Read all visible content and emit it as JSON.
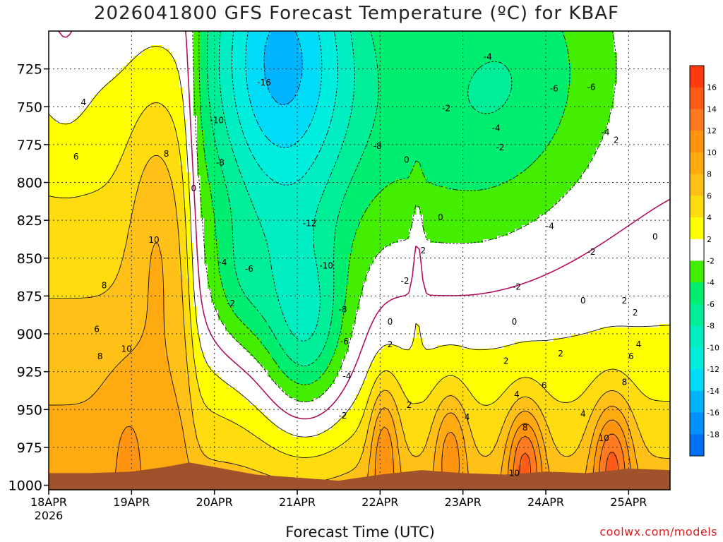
{
  "title": "2026041800 GFS Forecast Temperature (ºC) for KBAF",
  "credit": "coolwx.com/models",
  "chart_data": {
    "type": "heatmap",
    "title": "2026041800 GFS Forecast Temperature (ºC) for KBAF",
    "xlabel": "Forecast Time (UTC)",
    "ylabel": "",
    "x_ticks": [
      "18APR\n2026",
      "19APR",
      "20APR",
      "21APR",
      "22APR",
      "23APR",
      "24APR",
      "25APR"
    ],
    "x_day_range": [
      0,
      7.5
    ],
    "y_ticks": [
      725,
      750,
      775,
      800,
      825,
      850,
      875,
      900,
      925,
      950,
      975,
      1000
    ],
    "y_range": [
      1003,
      700
    ],
    "y_reversed": true,
    "grid": true,
    "legend": "right colorbar",
    "colorbar": {
      "labels": [
        16,
        14,
        12,
        10,
        8,
        6,
        4,
        2,
        -2,
        -4,
        -6,
        -8,
        -10,
        -12,
        -14,
        -16,
        -18
      ],
      "bins": [
        {
          "lo": 16,
          "hi": 18,
          "color": "#ff3a10"
        },
        {
          "lo": 14,
          "hi": 16,
          "color": "#ff5a18"
        },
        {
          "lo": 12,
          "hi": 14,
          "color": "#ff7a20"
        },
        {
          "lo": 10,
          "hi": 12,
          "color": "#ff9410"
        },
        {
          "lo": 8,
          "hi": 10,
          "color": "#ffaa10"
        },
        {
          "lo": 6,
          "hi": 8,
          "color": "#ffc018"
        },
        {
          "lo": 4,
          "hi": 6,
          "color": "#ffdc10"
        },
        {
          "lo": 2,
          "hi": 4,
          "color": "#ffff00"
        },
        {
          "lo": -2,
          "hi": 2,
          "color": "#ffffff"
        },
        {
          "lo": -4,
          "hi": -2,
          "color": "#44ee00"
        },
        {
          "lo": -6,
          "hi": -4,
          "color": "#00ee70"
        },
        {
          "lo": -8,
          "hi": -6,
          "color": "#00ee98"
        },
        {
          "lo": -10,
          "hi": -8,
          "color": "#00eec2"
        },
        {
          "lo": -12,
          "hi": -10,
          "color": "#00eedd"
        },
        {
          "lo": -14,
          "hi": -12,
          "color": "#00dcf8"
        },
        {
          "lo": -16,
          "hi": -14,
          "color": "#00b4ff"
        },
        {
          "lo": -18,
          "hi": -16,
          "color": "#0090ff"
        },
        {
          "lo": -20,
          "hi": -18,
          "color": "#0070f4"
        }
      ]
    },
    "zero_contour_color": "#b01060",
    "terrain_color": "#a0522d",
    "surface_pressure": [
      {
        "day": 0.0,
        "p": 992
      },
      {
        "day": 0.5,
        "p": 992
      },
      {
        "day": 1.0,
        "p": 991
      },
      {
        "day": 1.4,
        "p": 988
      },
      {
        "day": 1.7,
        "p": 985
      },
      {
        "day": 2.0,
        "p": 988
      },
      {
        "day": 2.5,
        "p": 993
      },
      {
        "day": 3.0,
        "p": 995
      },
      {
        "day": 3.5,
        "p": 997
      },
      {
        "day": 4.0,
        "p": 993
      },
      {
        "day": 4.5,
        "p": 990
      },
      {
        "day": 5.0,
        "p": 992
      },
      {
        "day": 5.5,
        "p": 993
      },
      {
        "day": 6.0,
        "p": 991
      },
      {
        "day": 6.5,
        "p": 992
      },
      {
        "day": 7.0,
        "p": 989
      },
      {
        "day": 7.5,
        "p": 990
      }
    ],
    "contour_labels": [
      {
        "day": 0.42,
        "p": 747,
        "t": "4"
      },
      {
        "day": 0.33,
        "p": 783,
        "t": "6"
      },
      {
        "day": 1.42,
        "p": 781,
        "t": "8"
      },
      {
        "day": 1.27,
        "p": 838,
        "t": "10"
      },
      {
        "day": 0.67,
        "p": 868,
        "t": "8"
      },
      {
        "day": 0.58,
        "p": 897,
        "t": "6"
      },
      {
        "day": 0.62,
        "p": 915,
        "t": "8"
      },
      {
        "day": 0.94,
        "p": 910,
        "t": "10"
      },
      {
        "day": 1.75,
        "p": 804,
        "t": "0"
      },
      {
        "day": 2.6,
        "p": 734,
        "t": "-16"
      },
      {
        "day": 2.03,
        "p": 759,
        "t": "-10"
      },
      {
        "day": 2.07,
        "p": 787,
        "t": "-8"
      },
      {
        "day": 3.15,
        "p": 827,
        "t": "-12"
      },
      {
        "day": 2.1,
        "p": 853,
        "t": "-4"
      },
      {
        "day": 2.42,
        "p": 857,
        "t": "-6"
      },
      {
        "day": 2.2,
        "p": 880,
        "t": "-2"
      },
      {
        "day": 3.35,
        "p": 855,
        "t": "-10"
      },
      {
        "day": 3.55,
        "p": 884,
        "t": "-8"
      },
      {
        "day": 3.57,
        "p": 905,
        "t": "-6"
      },
      {
        "day": 3.6,
        "p": 928,
        "t": "-4"
      },
      {
        "day": 3.55,
        "p": 954,
        "t": "-2"
      },
      {
        "day": 3.97,
        "p": 776,
        "t": "-8"
      },
      {
        "day": 4.3,
        "p": 865,
        "t": "-2"
      },
      {
        "day": 4.12,
        "p": 892,
        "t": "0"
      },
      {
        "day": 4.12,
        "p": 907,
        "t": "2"
      },
      {
        "day": 4.35,
        "p": 947,
        "t": "2"
      },
      {
        "day": 4.52,
        "p": 845,
        "t": "2"
      },
      {
        "day": 4.32,
        "p": 785,
        "t": "0"
      },
      {
        "day": 4.73,
        "p": 823,
        "t": "0"
      },
      {
        "day": 4.8,
        "p": 751,
        "t": "-2"
      },
      {
        "day": 5.3,
        "p": 717,
        "t": "-4"
      },
      {
        "day": 5.45,
        "p": 777,
        "t": "-2"
      },
      {
        "day": 5.4,
        "p": 764,
        "t": "-4"
      },
      {
        "day": 6.1,
        "p": 738,
        "t": "-6"
      },
      {
        "day": 6.55,
        "p": 737,
        "t": "-6"
      },
      {
        "day": 6.05,
        "p": 829,
        "t": "-4"
      },
      {
        "day": 6.72,
        "p": 767,
        "t": "-4"
      },
      {
        "day": 6.85,
        "p": 772,
        "t": "2"
      },
      {
        "day": 6.55,
        "p": 846,
        "t": "-2"
      },
      {
        "day": 5.65,
        "p": 869,
        "t": "-2"
      },
      {
        "day": 5.62,
        "p": 892,
        "t": "0"
      },
      {
        "day": 6.45,
        "p": 878,
        "t": "0"
      },
      {
        "day": 6.95,
        "p": 878,
        "t": "2"
      },
      {
        "day": 7.32,
        "p": 836,
        "t": "0"
      },
      {
        "day": 5.05,
        "p": 955,
        "t": "4"
      },
      {
        "day": 5.52,
        "p": 918,
        "t": "2"
      },
      {
        "day": 5.65,
        "p": 940,
        "t": "4"
      },
      {
        "day": 5.75,
        "p": 962,
        "t": "8"
      },
      {
        "day": 5.98,
        "p": 934,
        "t": "6"
      },
      {
        "day": 5.62,
        "p": 992,
        "t": "10"
      },
      {
        "day": 6.18,
        "p": 913,
        "t": "2"
      },
      {
        "day": 6.45,
        "p": 953,
        "t": "4"
      },
      {
        "day": 7.08,
        "p": 886,
        "t": "2"
      },
      {
        "day": 7.12,
        "p": 907,
        "t": "4"
      },
      {
        "day": 7.03,
        "p": 915,
        "t": "6"
      },
      {
        "day": 6.95,
        "p": 932,
        "t": "8"
      },
      {
        "day": 6.7,
        "p": 969,
        "t": "10"
      }
    ]
  }
}
